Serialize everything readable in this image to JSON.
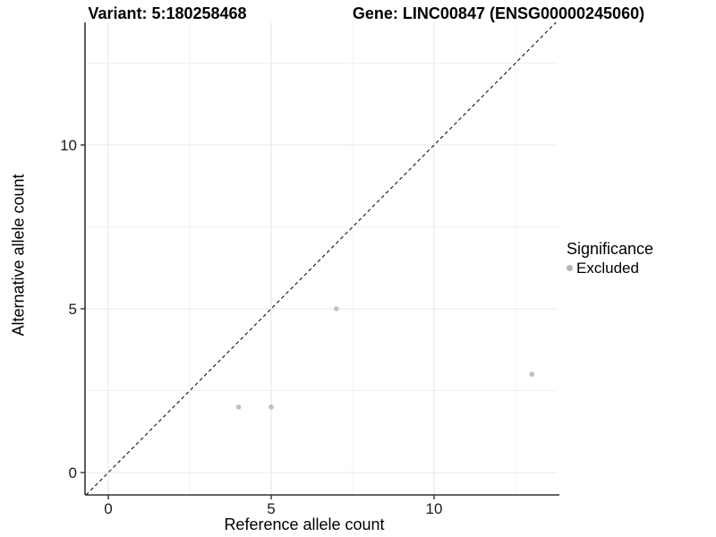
{
  "chart_data": {
    "type": "scatter",
    "title_variant": "Variant: 5:180258468",
    "title_gene": "Gene: LINC00847 (ENSG00000245060)",
    "xlabel": "Reference allele count",
    "ylabel": "Alternative allele count",
    "x_ticks": [
      0,
      5,
      10
    ],
    "y_ticks": [
      0,
      5,
      10
    ],
    "x_minor_ticks": [
      2.5,
      7.5,
      12.5
    ],
    "y_minor_ticks": [
      2.5,
      7.5,
      12.5
    ],
    "xlim": [
      -0.71,
      13.79
    ],
    "ylim": [
      -0.68,
      13.74
    ],
    "grid": "major-and-minor",
    "reference_line": {
      "style": "dashed",
      "slope": 1,
      "intercept": 0,
      "color": "#111111"
    },
    "legend": {
      "title": "Significance",
      "position": "right",
      "items": [
        {
          "label": "Excluded",
          "color": "#b3b3b3"
        }
      ]
    },
    "series": [
      {
        "name": "Excluded",
        "color": "#c2c2c2",
        "points": [
          {
            "x": 4,
            "y": 2
          },
          {
            "x": 5,
            "y": 2
          },
          {
            "x": 7,
            "y": 5
          },
          {
            "x": 13,
            "y": 3
          }
        ]
      }
    ],
    "colors": {
      "grid_major": "#e8e8e8",
      "grid_minor": "#f0f0f0",
      "axis_line": "#333333",
      "point": "#c2c2c2"
    }
  }
}
